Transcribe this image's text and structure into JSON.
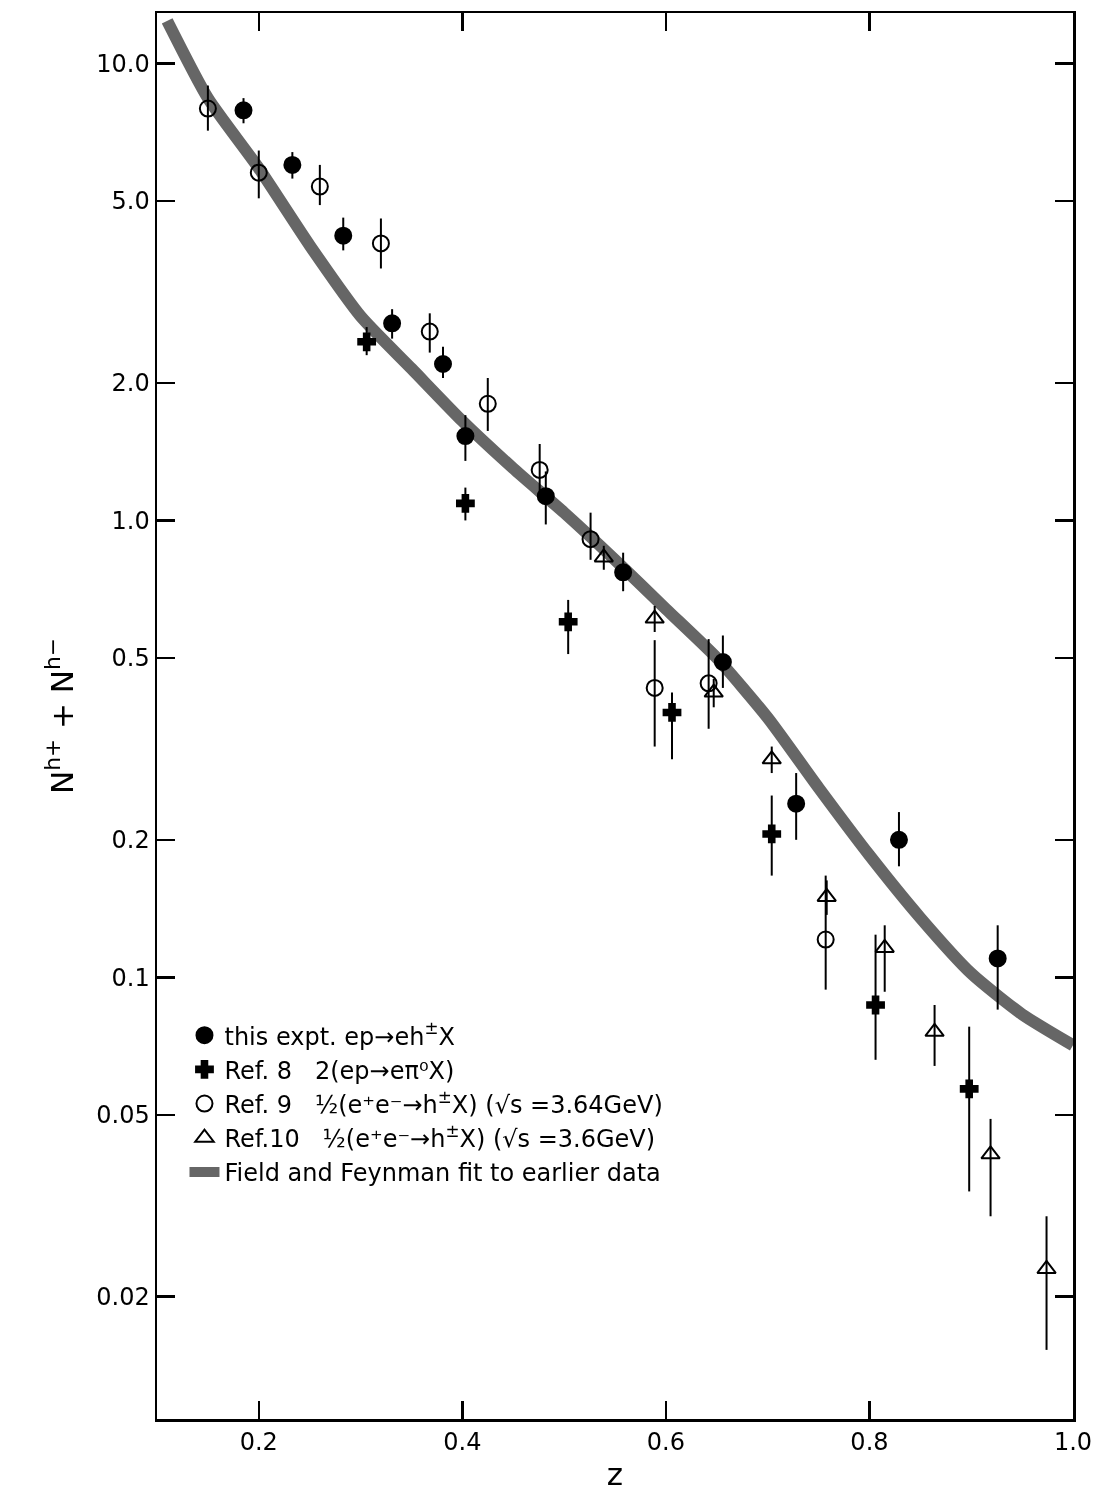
{
  "chart_data": {
    "type": "scatter",
    "xlabel": "z",
    "ylabel": "N$^{h+}$ + N$^{h−}$",
    "log": "y",
    "grid": false,
    "legend": "bottom left",
    "xlim": [
      0.1,
      1.0
    ],
    "xticks": [
      {
        "value": 0.2,
        "label": "0.2"
      },
      {
        "value": 0.4,
        "label": "0.4"
      },
      {
        "value": 0.6,
        "label": "0.6"
      },
      {
        "value": 0.8,
        "label": "0.8"
      },
      {
        "value": 1.0,
        "label": "1.0"
      }
    ],
    "ylim": [
      0.0108,
      12.9
    ],
    "yticks": [
      {
        "value": 0.02,
        "label": "0.02"
      },
      {
        "value": 0.05,
        "label": "0.05"
      },
      {
        "value": 0.1,
        "label": "0.1"
      },
      {
        "value": 0.2,
        "label": "0.2"
      },
      {
        "value": 0.5,
        "label": "0.5"
      },
      {
        "value": 1,
        "label": "1.0"
      },
      {
        "value": 2,
        "label": "2.0"
      },
      {
        "value": 5,
        "label": "5.0"
      },
      {
        "value": 10,
        "label": "10.0"
      }
    ],
    "series": [
      {
        "name": "this expt. ep→eh$^{±}$X",
        "color": "#000000",
        "marker": "circle",
        "x": [
          0.185,
          0.233,
          0.283,
          0.331,
          0.381,
          0.403,
          0.482,
          0.558,
          0.656,
          0.728,
          0.829,
          0.926
        ],
        "values": [
          7.9,
          6.0,
          4.2,
          2.7,
          2.2,
          1.53,
          1.13,
          0.77,
          0.49,
          0.24,
          0.2,
          0.11
        ],
        "errors": [
          [
            7.4,
            8.4
          ],
          [
            5.6,
            6.4
          ],
          [
            3.9,
            4.6
          ],
          [
            2.5,
            2.9
          ],
          [
            2.05,
            2.4
          ],
          [
            1.35,
            1.7
          ],
          [
            0.98,
            1.28
          ],
          [
            0.7,
            0.85
          ],
          [
            0.43,
            0.56
          ],
          [
            0.2,
            0.28
          ],
          [
            0.175,
            0.23
          ],
          [
            0.085,
            0.13
          ]
        ]
      },
      {
        "name": "Ref. 8   2(ep→eπ⁰X)",
        "color": "#000000",
        "marker": "cross",
        "x": [
          0.306,
          0.403,
          0.504,
          0.606,
          0.704,
          0.806,
          0.898
        ],
        "values": [
          2.46,
          1.09,
          0.6,
          0.38,
          0.206,
          0.087,
          0.057
        ],
        "errors": [
          [
            2.3,
            2.65
          ],
          [
            1.0,
            1.18
          ],
          [
            0.51,
            0.67
          ],
          [
            0.3,
            0.42
          ],
          [
            0.167,
            0.25
          ],
          [
            0.066,
            0.124
          ],
          [
            0.034,
            0.078
          ]
        ]
      },
      {
        "name": "Ref. 9   ½(e⁺e⁻→h$^{±}$X) (√s =3.64GeV)",
        "color": "#000000",
        "marker": "circle-open",
        "x": [
          0.15,
          0.2,
          0.26,
          0.32,
          0.368,
          0.425,
          0.476,
          0.526,
          0.589,
          0.642,
          0.757
        ],
        "values": [
          7.97,
          5.77,
          5.38,
          4.04,
          2.59,
          1.8,
          1.29,
          0.91,
          0.43,
          0.44,
          0.121
        ],
        "errors": [
          [
            7.13,
            8.95
          ],
          [
            5.07,
            6.45
          ],
          [
            4.9,
            6.0
          ],
          [
            3.56,
            4.58
          ],
          [
            2.33,
            2.84
          ],
          [
            1.57,
            2.05
          ],
          [
            1.11,
            1.47
          ],
          [
            0.82,
            1.04
          ],
          [
            0.32,
            0.547
          ],
          [
            0.35,
            0.55
          ],
          [
            0.094,
            0.167
          ]
        ]
      },
      {
        "name": "Ref.10   ½(e⁺e⁻→h$^{±}$X) (√s =3.6GeV)",
        "color": "#000000",
        "marker": "triangle",
        "x": [
          0.539,
          0.589,
          0.647,
          0.704,
          0.758,
          0.815,
          0.864,
          0.919,
          0.974
        ],
        "values": [
          0.83,
          0.61,
          0.42,
          0.3,
          0.15,
          0.116,
          0.076,
          0.041,
          0.023
        ],
        "errors": [
          [
            0.78,
            0.88
          ],
          [
            0.57,
            0.65
          ],
          [
            0.39,
            0.45
          ],
          [
            0.28,
            0.32
          ],
          [
            0.137,
            0.163
          ],
          [
            0.093,
            0.13
          ],
          [
            0.064,
            0.087
          ],
          [
            0.03,
            0.049
          ],
          [
            0.0153,
            0.03
          ]
        ]
      },
      {
        "name": "Field and Feynman fit to earlier data",
        "type": "line",
        "color": "#666666",
        "line_style": "solid",
        "marker": "none",
        "x": [
          0.11,
          0.15,
          0.2,
          0.25,
          0.3,
          0.35,
          0.4,
          0.45,
          0.5,
          0.55,
          0.6,
          0.65,
          0.7,
          0.75,
          0.8,
          0.85,
          0.9,
          0.95,
          1.0
        ],
        "values": [
          12.4,
          8.4,
          5.9,
          4.0,
          2.8,
          2.15,
          1.65,
          1.3,
          1.04,
          0.82,
          0.64,
          0.5,
          0.37,
          0.26,
          0.185,
          0.135,
          0.102,
          0.083,
          0.071
        ]
      }
    ]
  }
}
